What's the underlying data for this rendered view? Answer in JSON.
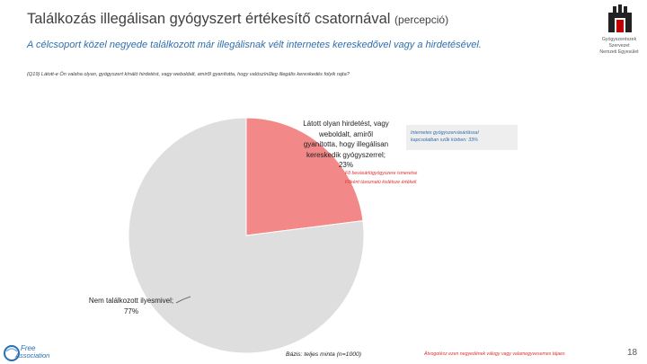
{
  "header": {
    "title_main": "Találkozás illegálisan gyógyszert értékesítő csatornával",
    "title_suffix": "(percepció)",
    "subtitle": "A célcsoport közel negyede találkozott már illegálisnak vélt internetes kereskedővel vagy a hirdetésével.",
    "question": "(Q19) Látott-e Ön valaha olyan, gyógyszert kínáló hirdetést, vagy weboldalt, amiről gyanította, hogy valószínűleg illegális kereskedés folyik rajta?"
  },
  "chart_data": {
    "type": "pie",
    "categories": [
      "Látott olyan hirdetést, vagy weboldalt, amiről gyanította, hogy illegálisan kereskedik gyógyszerrel",
      "Nem találkozott ilyesmivel"
    ],
    "values": [
      23,
      77
    ],
    "unit": "%",
    "colors": [
      "#f28888",
      "#dedede"
    ],
    "labels": [
      {
        "lines": [
          "Látott olyan hirdetést, vagy",
          "weboldalt, amiről",
          "gyanította, hogy illegálisan",
          "kereskedik gyógyszerrel;",
          "23%"
        ]
      },
      {
        "lines": [
          "Nem találkozott ilyesmivel;",
          "77%"
        ]
      }
    ]
  },
  "notes": {
    "box_lines": [
      "Internetes gyógyszervásárlással",
      "kapcsolatban szűk körben: 33%"
    ],
    "red_lines": [
      "Fő bevásárlógyógyszere ismeretse",
      "Főként távoznatú kislétsze értékeli"
    ]
  },
  "footer": {
    "base": "Bázis: teljes minta (n=1000)",
    "red_note": "Átvogotész ezen negyedének válogy vagy valamegyvesemes tájaes",
    "page_number": "18",
    "logo_left_line1": "Free",
    "logo_left_line2": "Association",
    "logo_right_lines": [
      "Gyógyszerészek Szervezet",
      "Nemzeti Egyesület"
    ]
  },
  "colors": {
    "title": "#404040",
    "subtitle": "#2f6fb0",
    "accent_red": "#e03030"
  }
}
